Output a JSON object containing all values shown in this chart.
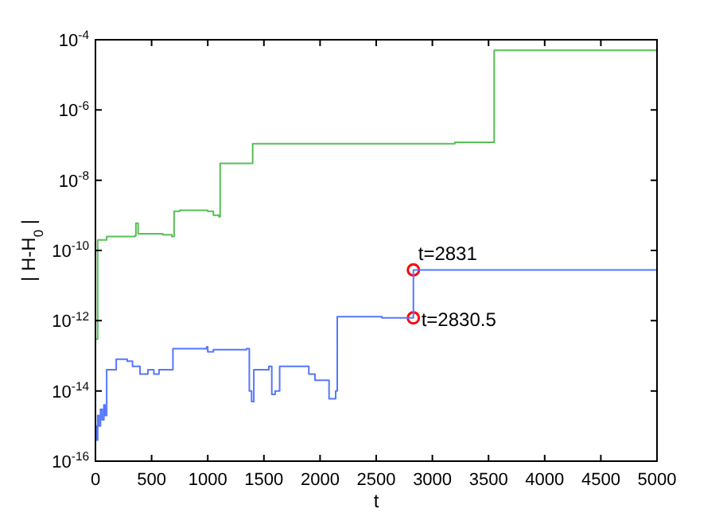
{
  "chart_data": {
    "type": "step",
    "xlabel": "t",
    "ylabel": "| H-H$_{0}$ |",
    "log": "y",
    "grid": false,
    "legend": false,
    "xlim": [
      0,
      5000
    ],
    "xticks": [
      0,
      500,
      1000,
      1500,
      2000,
      2500,
      3000,
      3500,
      4000,
      4500,
      5000
    ],
    "ylim": [
      1e-16,
      0.0001
    ],
    "yticks": [
      {
        "value": 1e-16,
        "label": "10$^{-16}$"
      },
      {
        "value": 1e-14,
        "label": "10$^{-14}$"
      },
      {
        "value": 1e-12,
        "label": "10$^{-12}$"
      },
      {
        "value": 1e-10,
        "label": "10$^{-10}$"
      },
      {
        "value": 1e-08,
        "label": "10$^{-8}$"
      },
      {
        "value": 1e-06,
        "label": "10$^{-6}$"
      },
      {
        "value": 0.0001,
        "label": "10$^{-4}$"
      }
    ],
    "series": [
      {
        "color": "#55c055",
        "x": [
          0,
          20,
          100,
          350,
          360,
          380,
          600,
          680,
          700,
          750,
          1000,
          1050,
          1100,
          1110,
          1390,
          1400,
          3200,
          3550,
          5000
        ],
        "values": [
          3e-13,
          2e-10,
          2.5e-10,
          2.6e-10,
          6e-10,
          3e-10,
          2.8e-10,
          2.5e-10,
          1.3e-09,
          1.4e-09,
          1.3e-09,
          1e-09,
          9e-10,
          3e-08,
          3e-08,
          1.1e-07,
          1.2e-07,
          5e-05,
          5e-05
        ]
      },
      {
        "color": "#5577ff",
        "x": [
          0,
          10,
          20,
          30,
          45,
          60,
          75,
          85,
          100,
          185,
          283,
          330,
          397,
          467,
          520,
          566,
          666,
          690,
          990,
          1000,
          1050,
          1346,
          1370,
          1390,
          1410,
          1544,
          1570,
          1600,
          1640,
          1785,
          1900,
          1955,
          2068,
          2080,
          2139,
          2153,
          2550,
          2830.5,
          2831,
          5000
        ],
        "values": [
          1e-15,
          4e-16,
          2e-15,
          1e-15,
          3e-15,
          1.5e-15,
          4e-15,
          2e-15,
          4e-14,
          8e-14,
          7e-14,
          5e-14,
          3e-14,
          4e-14,
          3e-14,
          4e-14,
          4e-14,
          1.6e-13,
          1.8e-13,
          1.3e-13,
          1.5e-13,
          1.6e-13,
          1e-14,
          5e-15,
          4e-14,
          5e-14,
          8e-15,
          1e-14,
          5e-14,
          5e-14,
          3e-14,
          2e-14,
          2e-14,
          6e-15,
          1e-14,
          1.3e-12,
          1.2e-12,
          1.2e-12,
          2.8e-11,
          2.8e-11
        ]
      },
      {
        "type": "scatter",
        "marker": "circle",
        "color": "#ff0000",
        "x": [
          2831,
          2830.5
        ],
        "values": [
          2.8e-11,
          1.2e-12
        ]
      }
    ],
    "annotations": [
      "t=2831",
      "t=2830.5"
    ]
  }
}
